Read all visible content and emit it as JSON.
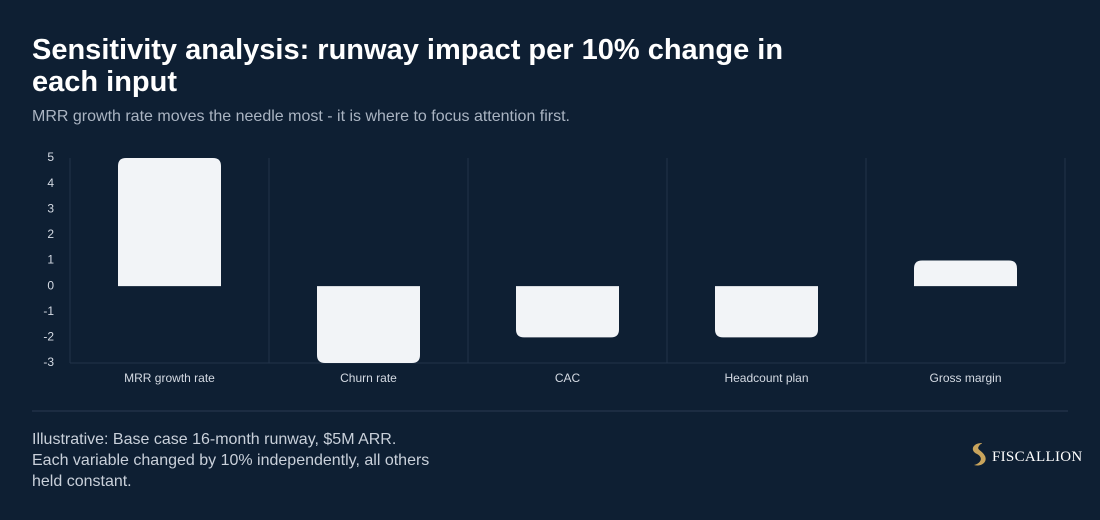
{
  "chart_data": {
    "type": "bar",
    "title": "Sensitivity analysis: runway impact per 10% change in each input",
    "subtitle": "MRR growth rate moves the needle most - it is where to focus attention first.",
    "categories": [
      "MRR growth rate",
      "Churn rate",
      "CAC",
      "Headcount plan",
      "Gross margin"
    ],
    "values": [
      5,
      -3,
      -2,
      -2,
      1
    ],
    "color": "#f2f4f7",
    "ylim": [
      -3,
      5
    ],
    "yticks": [
      -3,
      -2,
      -1,
      0,
      1,
      2,
      3,
      4,
      5
    ],
    "grid": false
  },
  "footer": "Illustrative: Base case 16-month runway, $5M ARR. Each variable changed by 10% independently, all others held constant.",
  "brand": "FISCALLION"
}
